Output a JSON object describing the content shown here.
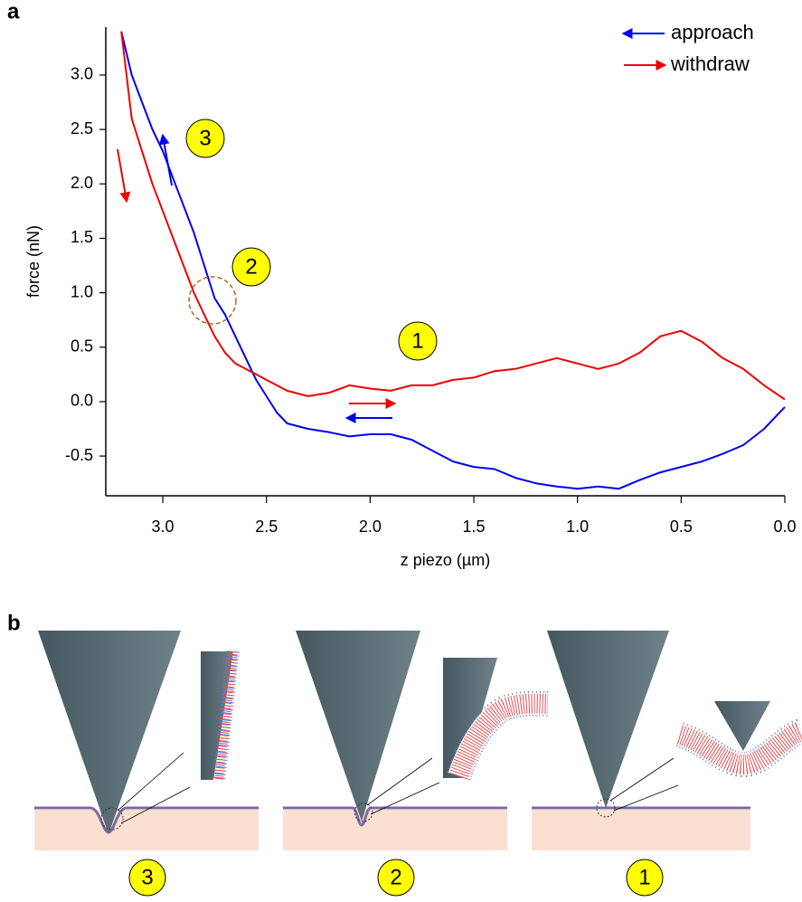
{
  "panel_labels": [
    "a",
    "b"
  ],
  "chart_data": {
    "type": "line",
    "x": [
      3.2,
      3.15,
      3.1,
      3.05,
      3.0,
      2.95,
      2.9,
      2.85,
      2.8,
      2.75,
      2.7,
      2.65,
      2.6,
      2.55,
      2.5,
      2.45,
      2.4,
      2.3,
      2.2,
      2.1,
      2.0,
      1.9,
      1.8,
      1.7,
      1.6,
      1.5,
      1.4,
      1.3,
      1.2,
      1.1,
      1.0,
      0.9,
      0.8,
      0.7,
      0.6,
      0.5,
      0.4,
      0.3,
      0.2,
      0.1,
      0.0
    ],
    "series": [
      {
        "name": "approach",
        "color": "#0000ee",
        "values": [
          3.4,
          3.0,
          2.75,
          2.5,
          2.3,
          2.05,
          1.8,
          1.55,
          1.25,
          0.95,
          0.8,
          0.6,
          0.4,
          0.2,
          0.05,
          -0.1,
          -0.2,
          -0.25,
          -0.28,
          -0.32,
          -0.3,
          -0.3,
          -0.35,
          -0.45,
          -0.55,
          -0.6,
          -0.62,
          -0.7,
          -0.75,
          -0.78,
          -0.8,
          -0.78,
          -0.8,
          -0.72,
          -0.65,
          -0.6,
          -0.55,
          -0.48,
          -0.4,
          -0.25,
          -0.05
        ]
      },
      {
        "name": "withdraw",
        "color": "#ee0000",
        "values": [
          3.4,
          2.6,
          2.3,
          2.0,
          1.75,
          1.5,
          1.25,
          1.0,
          0.8,
          0.6,
          0.45,
          0.35,
          0.3,
          0.25,
          0.2,
          0.15,
          0.1,
          0.05,
          0.08,
          0.15,
          0.12,
          0.1,
          0.15,
          0.15,
          0.2,
          0.22,
          0.28,
          0.3,
          0.35,
          0.4,
          0.35,
          0.3,
          0.35,
          0.45,
          0.6,
          0.65,
          0.55,
          0.4,
          0.3,
          0.15,
          0.02
        ]
      }
    ],
    "xlim": [
      3.275,
      0.0
    ],
    "xticks": [
      {
        "value": 3,
        "label": "3.0"
      },
      2.5,
      {
        "value": 2,
        "label": "2.0"
      },
      1.5,
      {
        "value": 1,
        "label": "1.0"
      },
      0.5,
      {
        "value": 0,
        "label": "0.0"
      }
    ],
    "ylim": [
      -0.865,
      3.44
    ],
    "yticks": [
      -0.5,
      {
        "value": 0,
        "label": "0.0"
      },
      0.5,
      {
        "value": 1,
        "label": "1.0"
      },
      1.5,
      {
        "value": 2,
        "label": "2.0"
      },
      2.5,
      {
        "value": 3,
        "label": "3.0"
      }
    ],
    "xlabel": "z piezo (µm)",
    "ylabel": "force (nN)",
    "legend": "upper right",
    "annotations": [
      "3",
      "2",
      "1"
    ]
  },
  "diagram": {
    "labels": [
      "3",
      "2",
      "1"
    ]
  }
}
